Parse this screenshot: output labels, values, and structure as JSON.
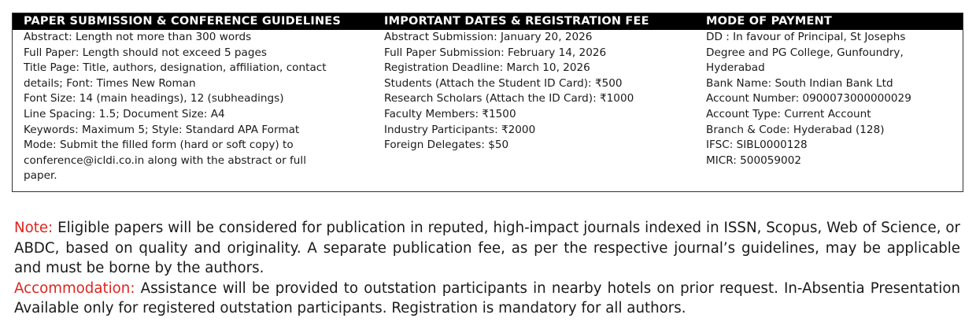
{
  "guidelines": {
    "title": "PAPER SUBMISSION & CONFERENCE GUIDELINES",
    "lines": [
      "Abstract: Length not more than 300 words",
      "Full Paper: Length should not exceed 5 pages",
      "Title Page: Title, authors, designation, affiliation, contact",
      "details; Font: Times New Roman",
      "Font Size: 14 (main headings), 12 (subheadings)",
      "Line Spacing: 1.5; Document Size: A4",
      "Keywords: Maximum 5; Style: Standard APA Format",
      "Mode: Submit the filled form (hard or soft copy) to",
      "conference@icldi.co.in along with the abstract or full",
      "paper."
    ]
  },
  "dates": {
    "title": "IMPORTANT DATES & REGISTRATION FEE",
    "lines": [
      "Abstract Submission: January 20, 2026",
      "Full Paper Submission: February 14, 2026",
      "Registration Deadline: March 10, 2026",
      "Students (Attach the Student ID Card):  ₹500",
      "Research Scholars (Attach the ID Card): ₹1000",
      "Faculty Members: ₹1500",
      "Industry Participants: ₹2000",
      "Foreign Delegates: $50"
    ]
  },
  "payment": {
    "title": "MODE OF PAYMENT",
    "lines": [
      "DD : In favour of Principal, St Josephs",
      "Degree and PG College, Gunfoundry,",
      "Hyderabad",
      "Bank Name: South Indian Bank Ltd",
      "Account Number: 0900073000000029",
      "Account Type: Current Account",
      "Branch & Code: Hyderabad (128)",
      "IFSC: SIBL0000128",
      "MICR: 500059002"
    ]
  },
  "note": {
    "label": "Note:",
    "text": " Eligible papers will be considered for publication in reputed, high-impact journals indexed in ISSN, Scopus, Web of Science, or ABDC, based on quality and originality. A separate publication fee, as per the respective journal’s guidelines, may be applicable and must be borne by the authors."
  },
  "accommodation": {
    "label": "Accommodation:",
    "text": " Assistance will be provided to outstation participants in nearby hotels on prior request. In-Absentia Presentation Available only for registered outstation participants. Registration is mandatory for all authors."
  },
  "colors": {
    "accent": "#e0241f",
    "header_bg": "#000000"
  }
}
